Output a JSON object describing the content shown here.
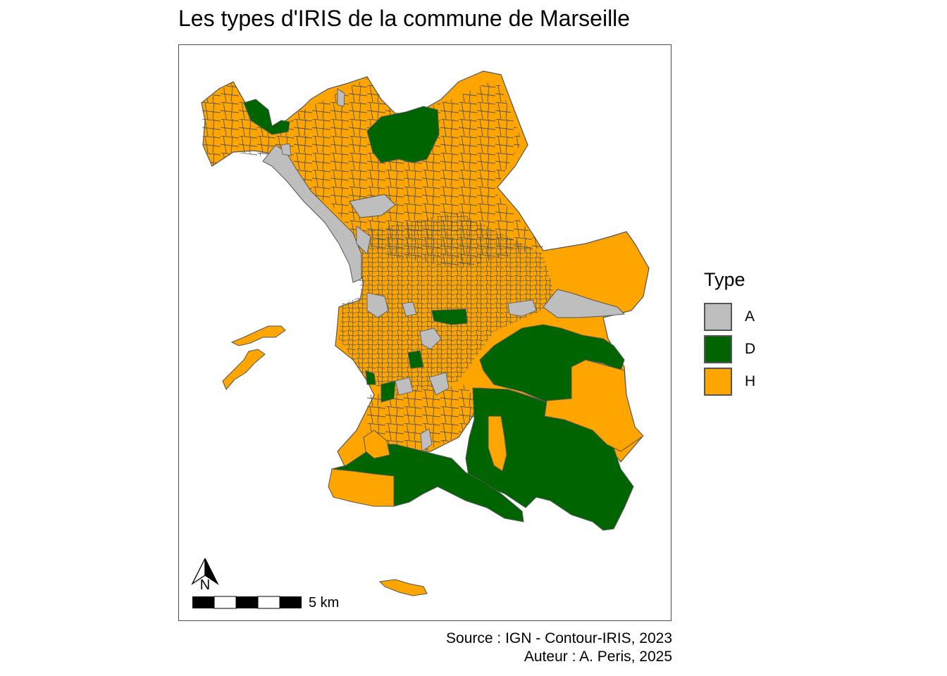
{
  "title": "Les types d'IRIS de la commune de Marseille",
  "legend": {
    "title": "Type",
    "items": [
      {
        "label": "A",
        "color": "#bebebe"
      },
      {
        "label": "D",
        "color": "#006400"
      },
      {
        "label": "H",
        "color": "#ffa500"
      }
    ]
  },
  "north_arrow": {
    "label": "N"
  },
  "scale_bar": {
    "label": "5 km"
  },
  "source": "Source : IGN - Contour-IRIS, 2023",
  "author": "Auteur : A. Peris, 2025",
  "colors": {
    "boundary": "#555555",
    "frame": "#4d4d4d"
  }
}
